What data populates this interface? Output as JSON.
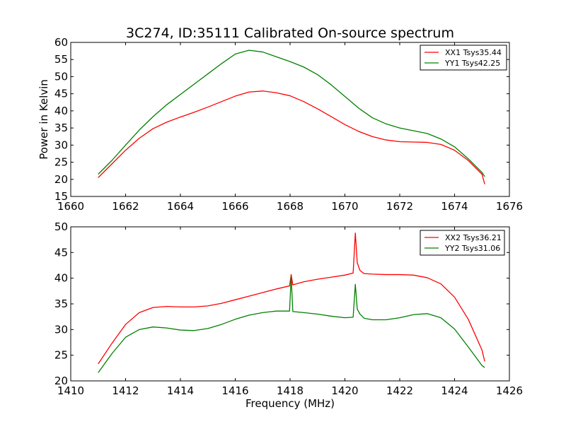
{
  "figure": {
    "title": "3C274, ID:35111 Calibrated On-source spectrum",
    "xlabel": "Frequency (MHz)",
    "ylabel": "Power in Kelvin"
  },
  "chart_data": [
    {
      "type": "line",
      "title": "3C274, ID:35111 Calibrated On-source spectrum",
      "xlabel": "",
      "ylabel": "Power in Kelvin",
      "xlim": [
        1660,
        1676
      ],
      "ylim": [
        15,
        60
      ],
      "xticks": [
        1660,
        1662,
        1664,
        1666,
        1668,
        1670,
        1672,
        1674,
        1676
      ],
      "yticks": [
        15,
        20,
        25,
        30,
        35,
        40,
        45,
        50,
        55,
        60
      ],
      "grid": false,
      "legend_position": "top-right",
      "series": [
        {
          "name": "XX1 Tsys35.44",
          "color": "#ff0000",
          "points": [
            [
              1661.0,
              20.5
            ],
            [
              1661.5,
              24.5
            ],
            [
              1662.0,
              28.5
            ],
            [
              1662.5,
              32.0
            ],
            [
              1663.0,
              34.8
            ],
            [
              1663.5,
              36.7
            ],
            [
              1664.0,
              38.2
            ],
            [
              1664.5,
              39.6
            ],
            [
              1665.0,
              41.1
            ],
            [
              1665.5,
              42.7
            ],
            [
              1666.0,
              44.3
            ],
            [
              1666.5,
              45.5
            ],
            [
              1667.0,
              45.8
            ],
            [
              1667.5,
              45.3
            ],
            [
              1668.0,
              44.4
            ],
            [
              1668.5,
              42.7
            ],
            [
              1669.0,
              40.6
            ],
            [
              1669.5,
              38.3
            ],
            [
              1670.0,
              36.0
            ],
            [
              1670.5,
              34.0
            ],
            [
              1671.0,
              32.5
            ],
            [
              1671.5,
              31.5
            ],
            [
              1672.0,
              31.0
            ],
            [
              1672.5,
              30.9
            ],
            [
              1673.0,
              30.8
            ],
            [
              1673.5,
              30.2
            ],
            [
              1674.0,
              28.5
            ],
            [
              1674.5,
              25.5
            ],
            [
              1675.0,
              21.5
            ],
            [
              1675.1,
              18.6
            ]
          ]
        },
        {
          "name": "YY1 Tsys42.25",
          "color": "#008000",
          "points": [
            [
              1661.0,
              21.5
            ],
            [
              1661.5,
              25.5
            ],
            [
              1662.0,
              30.0
            ],
            [
              1662.5,
              34.4
            ],
            [
              1663.0,
              38.3
            ],
            [
              1663.5,
              41.8
            ],
            [
              1664.0,
              44.8
            ],
            [
              1664.5,
              47.8
            ],
            [
              1665.0,
              50.8
            ],
            [
              1665.5,
              53.8
            ],
            [
              1666.0,
              56.6
            ],
            [
              1666.5,
              57.7
            ],
            [
              1667.0,
              57.2
            ],
            [
              1667.5,
              55.8
            ],
            [
              1668.0,
              54.4
            ],
            [
              1668.5,
              52.8
            ],
            [
              1669.0,
              50.6
            ],
            [
              1669.5,
              47.6
            ],
            [
              1670.0,
              44.2
            ],
            [
              1670.5,
              40.8
            ],
            [
              1671.0,
              38.0
            ],
            [
              1671.5,
              36.2
            ],
            [
              1672.0,
              35.0
            ],
            [
              1672.5,
              34.2
            ],
            [
              1673.0,
              33.4
            ],
            [
              1673.5,
              31.8
            ],
            [
              1674.0,
              29.5
            ],
            [
              1674.5,
              26.0
            ],
            [
              1675.0,
              22.0
            ],
            [
              1675.1,
              20.8
            ]
          ]
        }
      ]
    },
    {
      "type": "line",
      "title": "",
      "xlabel": "Frequency (MHz)",
      "ylabel": "",
      "xlim": [
        1410,
        1426
      ],
      "ylim": [
        20,
        50
      ],
      "xticks": [
        1410,
        1412,
        1414,
        1416,
        1418,
        1420,
        1422,
        1424,
        1426
      ],
      "yticks": [
        20,
        25,
        30,
        35,
        40,
        45,
        50
      ],
      "grid": false,
      "legend_position": "top-right",
      "series": [
        {
          "name": "XX2 Tsys36.21",
          "color": "#ff0000",
          "points": [
            [
              1411.0,
              23.3
            ],
            [
              1411.5,
              27.3
            ],
            [
              1412.0,
              31.0
            ],
            [
              1412.5,
              33.3
            ],
            [
              1413.0,
              34.3
            ],
            [
              1413.5,
              34.5
            ],
            [
              1414.0,
              34.4
            ],
            [
              1414.5,
              34.4
            ],
            [
              1415.0,
              34.6
            ],
            [
              1415.5,
              35.1
            ],
            [
              1416.0,
              35.8
            ],
            [
              1416.5,
              36.5
            ],
            [
              1417.0,
              37.2
            ],
            [
              1417.5,
              37.9
            ],
            [
              1417.98,
              38.5
            ],
            [
              1418.04,
              40.7
            ],
            [
              1418.1,
              38.7
            ],
            [
              1418.5,
              39.3
            ],
            [
              1419.0,
              39.8
            ],
            [
              1419.5,
              40.2
            ],
            [
              1420.0,
              40.6
            ],
            [
              1420.3,
              41.0
            ],
            [
              1420.38,
              48.8
            ],
            [
              1420.45,
              43.0
            ],
            [
              1420.55,
              41.5
            ],
            [
              1420.7,
              40.9
            ],
            [
              1421.0,
              40.8
            ],
            [
              1421.5,
              40.7
            ],
            [
              1422.0,
              40.7
            ],
            [
              1422.5,
              40.6
            ],
            [
              1423.0,
              40.1
            ],
            [
              1423.5,
              38.9
            ],
            [
              1424.0,
              36.3
            ],
            [
              1424.5,
              32.0
            ],
            [
              1425.0,
              26.0
            ],
            [
              1425.1,
              23.8
            ]
          ]
        },
        {
          "name": "YY2 Tsys31.06",
          "color": "#008000",
          "points": [
            [
              1411.0,
              21.6
            ],
            [
              1411.5,
              25.3
            ],
            [
              1412.0,
              28.5
            ],
            [
              1412.5,
              30.0
            ],
            [
              1413.0,
              30.5
            ],
            [
              1413.5,
              30.3
            ],
            [
              1414.0,
              29.9
            ],
            [
              1414.5,
              29.8
            ],
            [
              1415.0,
              30.2
            ],
            [
              1415.5,
              31.0
            ],
            [
              1416.0,
              32.0
            ],
            [
              1416.5,
              32.8
            ],
            [
              1417.0,
              33.3
            ],
            [
              1417.5,
              33.6
            ],
            [
              1417.98,
              33.6
            ],
            [
              1418.04,
              40.3
            ],
            [
              1418.1,
              33.5
            ],
            [
              1418.5,
              33.3
            ],
            [
              1419.0,
              33.0
            ],
            [
              1419.5,
              32.6
            ],
            [
              1420.0,
              32.3
            ],
            [
              1420.3,
              32.4
            ],
            [
              1420.38,
              38.8
            ],
            [
              1420.45,
              34.0
            ],
            [
              1420.55,
              33.0
            ],
            [
              1420.7,
              32.2
            ],
            [
              1421.0,
              31.9
            ],
            [
              1421.5,
              31.9
            ],
            [
              1422.0,
              32.3
            ],
            [
              1422.5,
              32.9
            ],
            [
              1423.0,
              33.1
            ],
            [
              1423.5,
              32.3
            ],
            [
              1424.0,
              30.1
            ],
            [
              1424.5,
              26.6
            ],
            [
              1425.0,
              23.0
            ],
            [
              1425.1,
              22.6
            ]
          ]
        }
      ]
    }
  ]
}
